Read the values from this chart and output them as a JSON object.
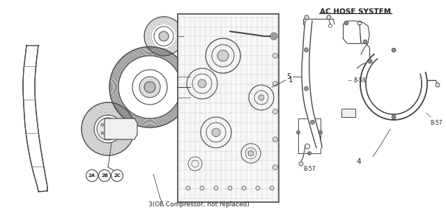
{
  "title": "AC HOSE SYSTEM",
  "bg_color": "#ffffff",
  "label_1": "1",
  "label_2A": "2A",
  "label_2B": "2B",
  "label_2C": "2C",
  "label_3": "3(OE Compressor, not replaced)",
  "label_4": "4",
  "label_5": "5",
  "label_B57a": "B-57",
  "label_B58": "B-58",
  "label_B57b": "B-57",
  "title_fontsize": 7.5,
  "label_fontsize": 6.5,
  "small_fontsize": 5.5,
  "text_color": "#222222",
  "line_color": "#444444",
  "fig_width": 6.4,
  "fig_height": 3.2,
  "dpi": 100
}
